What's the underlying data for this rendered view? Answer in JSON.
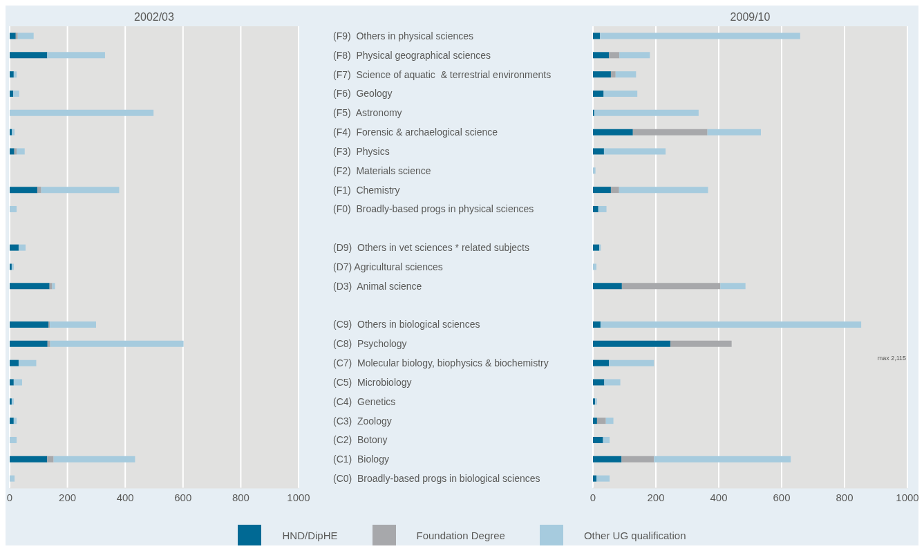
{
  "chart_data": [
    {
      "type": "bar",
      "orientation": "horizontal",
      "stacked": true,
      "title": "2002/03",
      "tick_labels": "x",
      "grid": "x",
      "legend": "bottom",
      "categories": [
        null,
        null,
        null,
        null,
        null,
        null,
        null,
        null,
        null,
        null,
        null,
        null,
        null,
        null,
        null,
        null,
        null,
        null,
        null,
        null,
        null,
        null,
        null,
        null
      ],
      "xlim": [
        0,
        1000
      ],
      "xticks": [
        0,
        200,
        400,
        600,
        800,
        1000
      ],
      "series": [
        {
          "name": "HND/DipHE",
          "color": "#006994",
          "values": [
            21,
            130,
            14,
            12,
            0,
            8,
            16,
            0,
            96,
            0,
            null,
            31,
            7,
            138,
            null,
            135,
            131,
            31,
            14,
            7,
            14,
            0,
            130,
            0
          ]
        },
        {
          "name": "Foundation Degree",
          "color": "#a7a8ab",
          "values": [
            7,
            0,
            0,
            0,
            0,
            0,
            8,
            0,
            13,
            0,
            null,
            0,
            0,
            9,
            null,
            4,
            9,
            0,
            0,
            0,
            0,
            0,
            22,
            0
          ]
        },
        {
          "name": "Other UG qualification",
          "color": "#a6cbde",
          "values": [
            55,
            200,
            10,
            21,
            498,
            9,
            28,
            0,
            270,
            24,
            null,
            24,
            7,
            10,
            null,
            160,
            462,
            61,
            29,
            7,
            10,
            24,
            282,
            17
          ]
        }
      ]
    },
    {
      "type": "bar",
      "orientation": "horizontal",
      "stacked": true,
      "title": "2009/10",
      "grid": "x",
      "categories": [
        "(F9)  Others in physical sciences",
        "(F8)  Physical geographical sciences",
        "(F7)  Science of aquatic  & terrestrial environments",
        "(F6)  Geology",
        "(F5)  Astronomy",
        "(F4)  Forensic & archaelogical science",
        "(F3)  Physics",
        "(F2)  Materials science",
        "(F1)  Chemistry",
        "(F0)  Broadly-based progs in physical sciences",
        null,
        "(D9)  Others in vet sciences * related subjects",
        "(D7) Agricultural sciences",
        "(D3)  Animal science",
        null,
        "(C9)  Others in biological sciences",
        "(C8)  Psychology",
        "(C7)  Molecular biology, biophysics & biochemistry",
        "(C5)  Microbiology",
        "(C4)  Genetics",
        "(C3)  Zoology",
        "(C2)  Botony",
        "(C1)  Biology",
        "(C0)  Broadly-based progs in biological sciences"
      ],
      "xlim": [
        0,
        1000
      ],
      "xticks": [
        0,
        200,
        400,
        600,
        800,
        1000
      ],
      "series": [
        {
          "color": "#006994",
          "values": [
            22,
            51,
            57,
            34,
            4,
            127,
            35,
            0,
            57,
            17,
            null,
            20,
            0,
            92,
            null,
            24,
            246,
            51,
            36,
            7,
            13,
            32,
            91,
            11
          ]
        },
        {
          "color": "#a7a8ab",
          "values": [
            0,
            33,
            15,
            0,
            0,
            237,
            0,
            0,
            26,
            0,
            null,
            0,
            0,
            313,
            null,
            0,
            195,
            0,
            0,
            0,
            28,
            0,
            103,
            0
          ]
        },
        {
          "color": "#a6cbde",
          "values": [
            637,
            97,
            65,
            107,
            332,
            170,
            196,
            8,
            283,
            26,
            null,
            5,
            11,
            80,
            null,
            829,
            null,
            143,
            51,
            6,
            24,
            21,
            435,
            42
          ]
        }
      ],
      "annotations": [
        "max 2,115"
      ]
    }
  ]
}
